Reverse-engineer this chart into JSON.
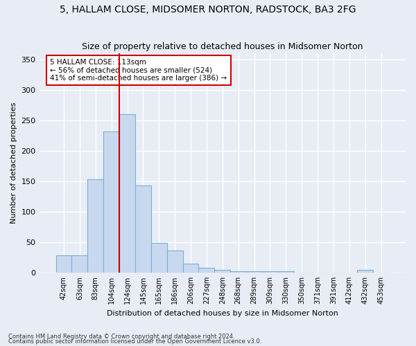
{
  "title": "5, HALLAM CLOSE, MIDSOMER NORTON, RADSTOCK, BA3 2FG",
  "subtitle": "Size of property relative to detached houses in Midsomer Norton",
  "xlabel": "Distribution of detached houses by size in Midsomer Norton",
  "ylabel": "Number of detached properties",
  "footnote1": "Contains HM Land Registry data © Crown copyright and database right 2024.",
  "footnote2": "Contains public sector information licensed under the Open Government Licence v3.0.",
  "categories": [
    "42sqm",
    "63sqm",
    "83sqm",
    "104sqm",
    "124sqm",
    "145sqm",
    "165sqm",
    "186sqm",
    "206sqm",
    "227sqm",
    "248sqm",
    "268sqm",
    "289sqm",
    "309sqm",
    "330sqm",
    "350sqm",
    "371sqm",
    "391sqm",
    "412sqm",
    "432sqm",
    "453sqm"
  ],
  "values": [
    28,
    28,
    153,
    232,
    260,
    143,
    49,
    36,
    15,
    8,
    4,
    2,
    2,
    2,
    2,
    0,
    0,
    0,
    0,
    4,
    0
  ],
  "bar_color": "#c8d9ef",
  "bar_edge_color": "#7aafd4",
  "vline_color": "#cc0000",
  "vline_x_index": 3.5,
  "annotation_text": "5 HALLAM CLOSE: 113sqm\n← 56% of detached houses are smaller (524)\n41% of semi-detached houses are larger (386) →",
  "annotation_box_color": "white",
  "annotation_box_edge": "#cc0000",
  "ylim": [
    0,
    360
  ],
  "yticks": [
    0,
    50,
    100,
    150,
    200,
    250,
    300,
    350
  ],
  "bg_color": "#e8edf5",
  "title_fontsize": 10,
  "subtitle_fontsize": 9,
  "xlabel_fontsize": 8,
  "ylabel_fontsize": 8
}
